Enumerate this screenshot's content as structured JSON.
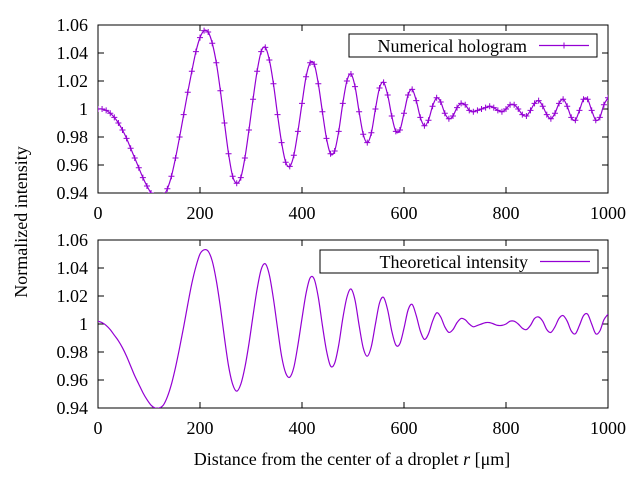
{
  "figure": {
    "ylabel": "Normalized intensity",
    "xlabel_prefix": "Distance from the center of a droplet ",
    "xlabel_var": "r",
    "xlabel_unit": " [μm]",
    "line_color": "#9400d3"
  },
  "chart_data": [
    {
      "type": "line",
      "legend": "Numerical hologram",
      "marker": "plus",
      "xlim": [
        0,
        1000
      ],
      "ylim": [
        0.94,
        1.06
      ],
      "xticks": [
        0,
        200,
        400,
        600,
        800,
        1000
      ],
      "yticks": [
        0.94,
        0.96,
        0.98,
        1,
        1.02,
        1.04,
        1.06
      ],
      "series": [
        {
          "name": "Numerical hologram",
          "x": [
            0,
            8,
            16,
            24,
            32,
            40,
            48,
            56,
            64,
            72,
            80,
            88,
            96,
            104,
            112,
            120,
            128,
            136,
            144,
            152,
            160,
            168,
            176,
            184,
            192,
            200,
            208,
            216,
            224,
            232,
            240,
            248,
            256,
            264,
            272,
            280,
            288,
            296,
            304,
            312,
            320,
            328,
            336,
            344,
            352,
            360,
            368,
            376,
            384,
            392,
            400,
            408,
            416,
            424,
            432,
            440,
            448,
            456,
            464,
            472,
            480,
            488,
            496,
            504,
            512,
            520,
            528,
            536,
            544,
            552,
            560,
            568,
            576,
            584,
            592,
            600,
            608,
            616,
            624,
            632,
            640,
            648,
            656,
            664,
            672,
            680,
            688,
            696,
            704,
            712,
            720,
            728,
            736,
            744,
            752,
            760,
            768,
            776,
            784,
            792,
            800,
            808,
            816,
            824,
            832,
            840,
            848,
            856,
            864,
            872,
            880,
            888,
            896,
            904,
            912,
            920,
            928,
            936,
            944,
            952,
            960,
            968,
            976,
            984,
            992,
            1000
          ],
          "y": [
            1.0,
            1.0,
            0.999,
            0.997,
            0.994,
            0.99,
            0.985,
            0.979,
            0.972,
            0.965,
            0.958,
            0.951,
            0.945,
            0.94,
            0.937,
            0.936,
            0.938,
            0.943,
            0.952,
            0.965,
            0.98,
            0.996,
            1.012,
            1.027,
            1.041,
            1.051,
            1.056,
            1.055,
            1.047,
            1.033,
            1.013,
            0.99,
            0.968,
            0.952,
            0.947,
            0.951,
            0.965,
            0.985,
            1.007,
            1.027,
            1.041,
            1.044,
            1.035,
            1.018,
            0.996,
            0.976,
            0.962,
            0.959,
            0.967,
            0.984,
            1.004,
            1.023,
            1.033,
            1.032,
            1.018,
            0.998,
            0.979,
            0.968,
            0.97,
            0.984,
            1.004,
            1.02,
            1.025,
            1.016,
            0.998,
            0.982,
            0.976,
            0.983,
            1.0,
            1.015,
            1.019,
            1.01,
            0.995,
            0.984,
            0.985,
            0.997,
            1.01,
            1.014,
            1.006,
            0.994,
            0.988,
            0.992,
            1.002,
            1.008,
            1.005,
            0.997,
            0.993,
            0.995,
            1.001,
            1.004,
            1.003,
            0.999,
            0.998,
            0.999,
            1.0,
            1.001,
            1.002,
            1.001,
            0.999,
            0.998,
            1.0,
            1.003,
            1.003,
            1.0,
            0.996,
            0.995,
            0.999,
            1.004,
            1.006,
            1.002,
            0.996,
            0.993,
            0.997,
            1.004,
            1.007,
            1.002,
            0.994,
            0.992,
            0.999,
            1.007,
            1.007,
            0.999,
            0.992,
            0.994,
            1.003,
            1.008
          ]
        }
      ]
    },
    {
      "type": "line",
      "legend": "Theoretical intensity",
      "marker": "none",
      "xlim": [
        0,
        1000
      ],
      "ylim": [
        0.94,
        1.06
      ],
      "xticks": [
        0,
        200,
        400,
        600,
        800,
        1000
      ],
      "yticks": [
        0.94,
        0.96,
        0.98,
        1,
        1.02,
        1.04,
        1.06
      ],
      "series": [
        {
          "name": "Theoretical intensity",
          "x": [
            0,
            8,
            16,
            24,
            32,
            40,
            48,
            56,
            64,
            72,
            80,
            88,
            96,
            104,
            112,
            120,
            128,
            136,
            144,
            152,
            160,
            168,
            176,
            184,
            192,
            200,
            208,
            216,
            224,
            232,
            240,
            248,
            256,
            264,
            272,
            280,
            288,
            296,
            304,
            312,
            320,
            328,
            336,
            344,
            352,
            360,
            368,
            376,
            384,
            392,
            400,
            408,
            416,
            424,
            432,
            440,
            448,
            456,
            464,
            472,
            480,
            488,
            496,
            504,
            512,
            520,
            528,
            536,
            544,
            552,
            560,
            568,
            576,
            584,
            592,
            600,
            608,
            616,
            624,
            632,
            640,
            648,
            656,
            664,
            672,
            680,
            688,
            696,
            704,
            712,
            720,
            728,
            736,
            744,
            752,
            760,
            768,
            776,
            784,
            792,
            800,
            808,
            816,
            824,
            832,
            840,
            848,
            856,
            864,
            872,
            880,
            888,
            896,
            904,
            912,
            920,
            928,
            936,
            944,
            952,
            960,
            968,
            976,
            984,
            992,
            1000
          ],
          "y": [
            1.002,
            1.001,
            0.999,
            0.996,
            0.992,
            0.988,
            0.983,
            0.977,
            0.97,
            0.963,
            0.957,
            0.951,
            0.946,
            0.942,
            0.94,
            0.94,
            0.942,
            0.948,
            0.957,
            0.969,
            0.983,
            0.998,
            1.014,
            1.029,
            1.041,
            1.05,
            1.053,
            1.052,
            1.045,
            1.031,
            1.012,
            0.99,
            0.97,
            0.957,
            0.952,
            0.957,
            0.969,
            0.986,
            1.006,
            1.025,
            1.039,
            1.043,
            1.035,
            1.018,
            0.997,
            0.977,
            0.965,
            0.962,
            0.969,
            0.985,
            1.004,
            1.022,
            1.033,
            1.032,
            1.019,
            0.999,
            0.981,
            0.97,
            0.972,
            0.985,
            1.004,
            1.019,
            1.025,
            1.017,
            0.999,
            0.983,
            0.977,
            0.984,
            1.0,
            1.015,
            1.019,
            1.01,
            0.995,
            0.985,
            0.986,
            0.997,
            1.01,
            1.014,
            1.006,
            0.995,
            0.989,
            0.993,
            1.002,
            1.008,
            1.005,
            0.998,
            0.994,
            0.996,
            1.001,
            1.004,
            1.003,
            1.0,
            0.998,
            0.999,
            1.0,
            1.001,
            1.001,
            1.0,
            0.999,
            0.999,
            1.0,
            1.002,
            1.002,
            1.0,
            0.997,
            0.996,
            0.999,
            1.004,
            1.005,
            1.002,
            0.996,
            0.994,
            0.998,
            1.004,
            1.006,
            1.002,
            0.995,
            0.993,
            0.999,
            1.006,
            1.007,
            1.0,
            0.993,
            0.995,
            1.003,
            1.007
          ]
        }
      ]
    }
  ]
}
